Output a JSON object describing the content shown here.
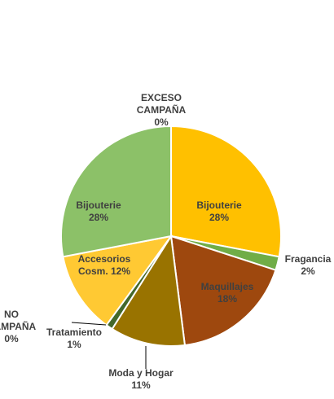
{
  "chart_data": {
    "type": "pie",
    "title": "",
    "slices": [
      {
        "name": "EXCESO CAMPAÑA",
        "value": 0,
        "label": "0%",
        "color": "#F2C200"
      },
      {
        "name": "Bijouterie",
        "value": 28,
        "label": "28%",
        "color": "#FFC000"
      },
      {
        "name": "Fragancia",
        "value": 2,
        "label": "2%",
        "color": "#70AD47"
      },
      {
        "name": "Maquillajes",
        "value": 18,
        "label": "18%",
        "color": "#9E480E"
      },
      {
        "name": "Moda y Hogar",
        "value": 11,
        "label": "11%",
        "color": "#997300"
      },
      {
        "name": "Tratamiento",
        "value": 1,
        "label": "1%",
        "color": "#43682B"
      },
      {
        "name": "NO CAMPAÑA",
        "value": 0,
        "label": "0%",
        "color": "#7F7F7F"
      },
      {
        "name": "Accesorios Cosm.",
        "value": 12,
        "label": "12%",
        "color": "#FFC933"
      },
      {
        "name": "Bijouterie",
        "value": 28,
        "label": "28%",
        "color": "#8CC168"
      }
    ]
  },
  "labels": [
    {
      "lines": [
        "EXCESO",
        "CAMPAÑA",
        "0%"
      ]
    },
    {
      "lines": [
        "Bijouterie",
        "28%"
      ]
    },
    {
      "lines": [
        "Fragancia",
        "2%"
      ]
    },
    {
      "lines": [
        "Maquillajes",
        "18%"
      ]
    },
    {
      "lines": [
        "Moda y Hogar",
        "11%"
      ]
    },
    {
      "lines": [
        "Tratamiento",
        "1%"
      ]
    },
    {
      "lines": [
        "NO",
        "CAMPAÑA",
        "0%"
      ]
    },
    {
      "lines": [
        "Accesorios",
        "Cosm. 12%"
      ]
    },
    {
      "lines": [
        "Bijouterie",
        "28%"
      ]
    }
  ]
}
